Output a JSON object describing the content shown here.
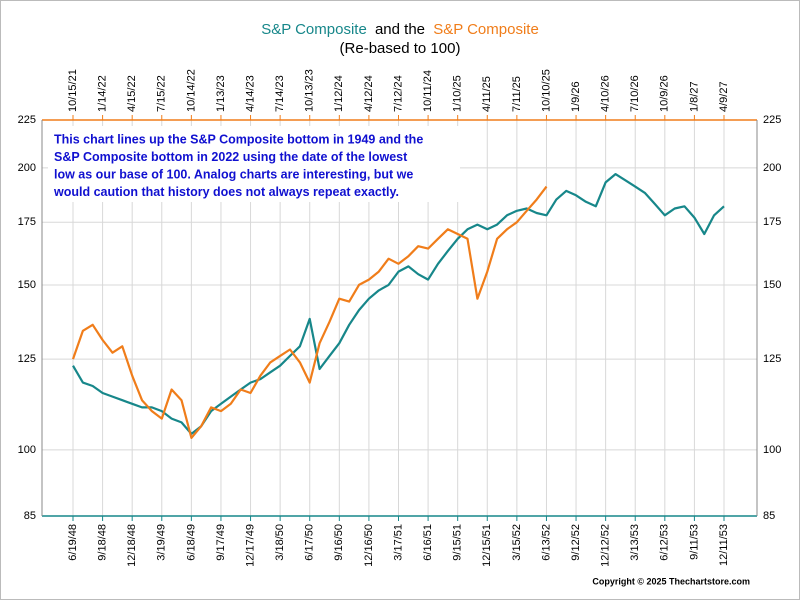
{
  "chart_data": {
    "type": "line",
    "title": [
      "S&P Composite",
      "and the",
      "S&P Composite"
    ],
    "subtitle": "(Re-based to 100)",
    "annotation": [
      "This chart lines up the S&P Composite bottom in 1949 and the",
      "S&P Composite bottom in 2022 using the date of the lowest",
      "low as our base of 100.  Analog charts are interesting, but we",
      "would caution that history does not always repeat exactly."
    ],
    "copyright": "Copyright © 2025 Thechartstore.com",
    "log_scale": true,
    "grid": true,
    "ylim": [
      85,
      225
    ],
    "yticks": [
      85,
      100,
      125,
      150,
      175,
      200,
      225
    ],
    "categories": [
      "6/19/48",
      null,
      null,
      "9/18/48",
      null,
      null,
      "12/18/48",
      null,
      null,
      "3/19/49",
      null,
      null,
      "6/18/49",
      null,
      null,
      "9/17/49",
      null,
      null,
      "12/17/49",
      null,
      null,
      "3/18/50",
      null,
      null,
      "6/17/50",
      null,
      null,
      "9/16/50",
      null,
      null,
      "12/16/50",
      null,
      null,
      "3/17/51",
      null,
      null,
      "6/16/51",
      null,
      null,
      "9/15/51",
      null,
      null,
      "12/15/51",
      null,
      null,
      "3/15/52",
      null,
      null,
      "6/13/52",
      null,
      null,
      "9/12/52",
      null,
      null,
      "12/12/52",
      null,
      null,
      "3/13/53",
      null,
      null,
      "6/12/53",
      null,
      null,
      "9/11/53",
      null,
      null,
      "12/11/53"
    ],
    "categories_top": [
      "10/15/21",
      null,
      null,
      "1/14/22",
      null,
      null,
      "4/15/22",
      null,
      null,
      "7/15/22",
      null,
      null,
      "10/14/22",
      null,
      null,
      "1/13/23",
      null,
      null,
      "4/14/23",
      null,
      null,
      "7/14/23",
      null,
      null,
      "10/13/23",
      null,
      null,
      "1/12/24",
      null,
      null,
      "4/12/24",
      null,
      null,
      "7/12/24",
      null,
      null,
      "10/11/24",
      null,
      null,
      "1/10/25",
      null,
      null,
      "4/11/25",
      null,
      null,
      "7/11/25",
      null,
      null,
      "10/10/25",
      null,
      null,
      "1/9/26",
      null,
      null,
      "4/10/26",
      null,
      null,
      "7/10/26",
      null,
      null,
      "10/9/26",
      null,
      null,
      "1/8/27",
      null,
      null,
      "4/9/27"
    ],
    "series": [
      {
        "name": "S&P Composite",
        "color": "#17878a",
        "axis_color": "#17878a",
        "values": [
          123,
          118,
          117,
          115,
          114,
          113,
          112,
          111,
          111,
          110,
          108,
          107,
          104,
          106,
          110,
          112,
          114,
          116,
          118,
          119,
          121,
          123,
          126,
          129,
          138,
          122,
          126,
          130,
          136,
          141,
          145,
          148,
          150,
          155,
          157,
          154,
          152,
          158,
          163,
          168,
          172,
          174,
          172,
          174,
          178,
          180,
          181,
          179,
          178,
          185,
          189,
          187,
          184,
          182,
          193,
          197,
          194,
          191,
          188,
          183,
          178,
          181,
          182,
          177,
          170,
          178,
          182
        ]
      },
      {
        "name": "S&P Composite",
        "color": "#f07d1a",
        "axis_color": "#f07d1a",
        "values": [
          125,
          134,
          136,
          131,
          127,
          129,
          120,
          113,
          110,
          108,
          116,
          113,
          103,
          106,
          111,
          110,
          112,
          116,
          115,
          120,
          124,
          126,
          128,
          124,
          118,
          130,
          137,
          145,
          144,
          150,
          152,
          155,
          160,
          158,
          161,
          165,
          164,
          168,
          172,
          170,
          168,
          145,
          155,
          168,
          172,
          175,
          180,
          185,
          191,
          null,
          null,
          null,
          null,
          null,
          null,
          null,
          null,
          null,
          null,
          null,
          null,
          null,
          null,
          null,
          null,
          null,
          null
        ]
      }
    ]
  }
}
